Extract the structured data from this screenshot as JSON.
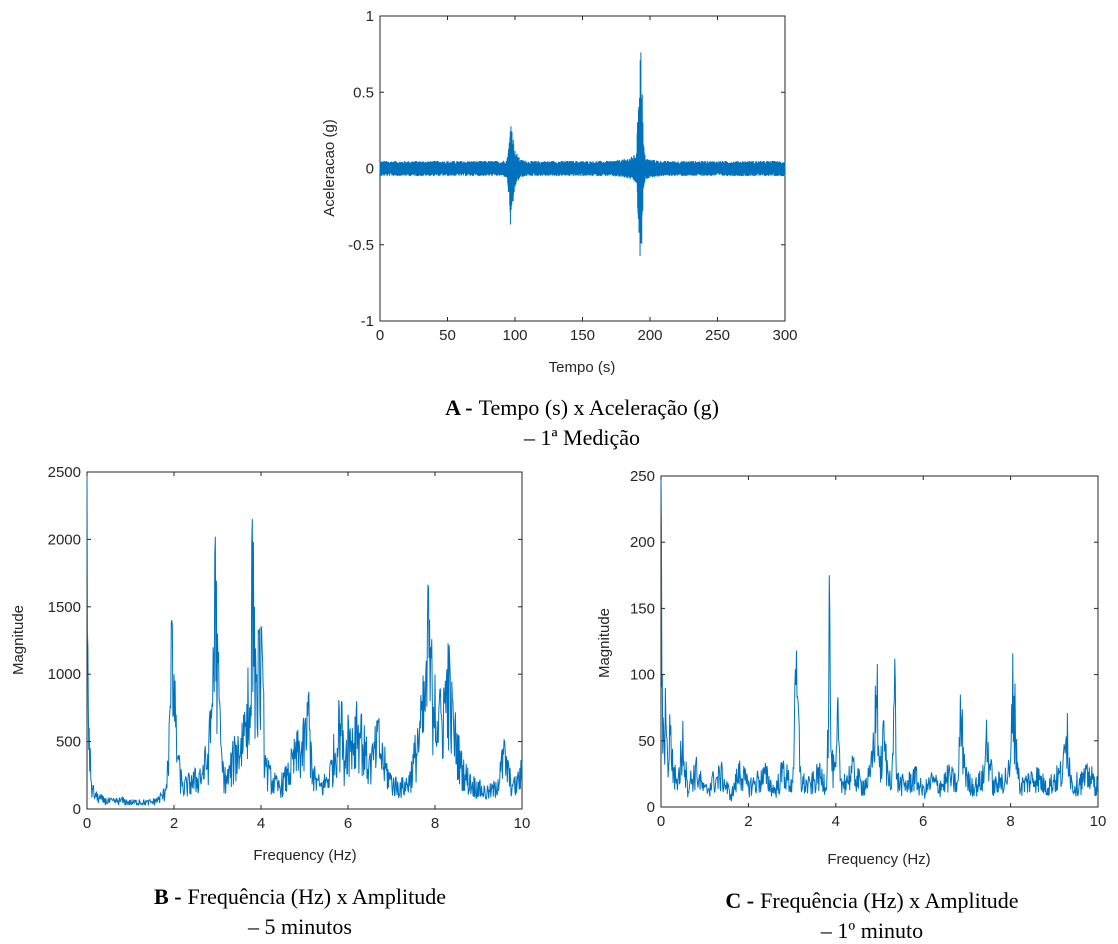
{
  "colors": {
    "series": "#0072BD",
    "axis": "#262626",
    "background": "#ffffff"
  },
  "captions": {
    "a_letter": "A -",
    "a_line1": "Tempo (s) x Aceleração (g)",
    "a_line2": "– 1ª Medição",
    "b_letter": "B -",
    "b_line1": "Frequência (Hz) x Amplitude",
    "b_line2": "– 5 minutos",
    "c_letter": "C -",
    "c_line1": "Frequência (Hz) x Amplitude",
    "c_line2": "– 1º minuto"
  },
  "chart_data": [
    {
      "id": "A",
      "type": "line",
      "xlabel": "Tempo (s)",
      "ylabel": "Aceleracao (g)",
      "xlim": [
        0,
        300
      ],
      "ylim": [
        -1,
        1
      ],
      "xticks": [
        0,
        50,
        100,
        150,
        200,
        250,
        300
      ],
      "xtick_labels": [
        "0",
        "50",
        "100",
        "150",
        "200",
        "250",
        "300"
      ],
      "yticks": [
        -1,
        -0.5,
        0,
        0.5,
        1
      ],
      "ytick_labels": [
        "-1",
        "-0.5",
        "0",
        "0.5",
        "1"
      ],
      "grid": false,
      "series": [
        {
          "x": [
            0,
            20,
            40,
            60,
            80,
            90,
            94,
            96,
            97,
            98,
            100,
            104,
            110,
            130,
            150,
            170,
            180,
            185,
            190,
            192,
            193,
            194,
            195,
            196,
            197,
            200,
            210,
            230,
            250,
            270,
            290,
            300
          ],
          "upper": [
            0.05,
            0.05,
            0.05,
            0.05,
            0.05,
            0.05,
            0.06,
            0.2,
            0.35,
            0.25,
            0.12,
            0.06,
            0.05,
            0.05,
            0.05,
            0.05,
            0.06,
            0.07,
            0.1,
            0.65,
            0.85,
            0.66,
            0.2,
            0.1,
            0.07,
            0.06,
            0.05,
            0.05,
            0.05,
            0.05,
            0.05,
            0.05
          ],
          "lower": [
            -0.05,
            -0.05,
            -0.05,
            -0.05,
            -0.05,
            -0.05,
            -0.06,
            -0.25,
            -0.47,
            -0.3,
            -0.12,
            -0.06,
            -0.05,
            -0.05,
            -0.05,
            -0.05,
            -0.06,
            -0.07,
            -0.1,
            -0.5,
            -0.69,
            -0.5,
            -0.2,
            -0.1,
            -0.07,
            -0.06,
            -0.05,
            -0.05,
            -0.05,
            -0.05,
            -0.05,
            -0.05
          ]
        }
      ]
    },
    {
      "id": "B",
      "type": "line",
      "xlabel": "Frequency (Hz)",
      "ylabel": "Magnitude",
      "xlim": [
        0,
        10
      ],
      "ylim": [
        0,
        2500
      ],
      "xticks": [
        0,
        2,
        4,
        6,
        8,
        10
      ],
      "xtick_labels": [
        "0",
        "2",
        "4",
        "6",
        "8",
        "10"
      ],
      "yticks": [
        0,
        500,
        1000,
        1500,
        2000,
        2500
      ],
      "ytick_labels": [
        "0",
        "500",
        "1000",
        "1500",
        "2000",
        "2500"
      ],
      "grid": false,
      "series": [
        {
          "x": [
            0,
            0.02,
            0.05,
            0.1,
            0.2,
            0.4,
            0.6,
            0.8,
            1.0,
            1.2,
            1.4,
            1.6,
            1.8,
            1.9,
            1.95,
            2.0,
            2.05,
            2.1,
            2.2,
            2.4,
            2.6,
            2.8,
            2.9,
            2.95,
            3.0,
            3.05,
            3.1,
            3.2,
            3.4,
            3.6,
            3.7,
            3.75,
            3.8,
            3.85,
            3.9,
            3.95,
            4.0,
            4.05,
            4.1,
            4.2,
            4.4,
            4.6,
            4.8,
            5.0,
            5.1,
            5.15,
            5.2,
            5.4,
            5.6,
            5.8,
            5.85,
            5.9,
            6.0,
            6.1,
            6.2,
            6.3,
            6.4,
            6.5,
            6.6,
            6.7,
            6.8,
            7.0,
            7.2,
            7.4,
            7.6,
            7.7,
            7.8,
            7.85,
            7.9,
            8.0,
            8.1,
            8.2,
            8.3,
            8.4,
            8.6,
            8.8,
            9.0,
            9.2,
            9.4,
            9.5,
            9.6,
            9.7,
            9.8,
            9.9,
            10.0
          ],
          "y": [
            2500,
            1200,
            600,
            200,
            120,
            80,
            70,
            80,
            60,
            70,
            60,
            80,
            150,
            700,
            1400,
            1000,
            700,
            400,
            200,
            250,
            300,
            500,
            1200,
            2020,
            1300,
            800,
            400,
            250,
            500,
            700,
            1050,
            600,
            2150,
            1500,
            1000,
            1300,
            1350,
            900,
            400,
            300,
            200,
            300,
            500,
            600,
            870,
            500,
            300,
            200,
            350,
            750,
            800,
            450,
            700,
            600,
            800,
            700,
            500,
            400,
            500,
            650,
            450,
            250,
            200,
            250,
            600,
            800,
            1100,
            1640,
            1200,
            1000,
            800,
            900,
            1230,
            800,
            400,
            250,
            200,
            150,
            200,
            350,
            500,
            300,
            200,
            250,
            350
          ]
        }
      ]
    },
    {
      "id": "C",
      "type": "line",
      "xlabel": "Frequency (Hz)",
      "ylabel": "Magnitude",
      "xlim": [
        0,
        10
      ],
      "ylim": [
        0,
        250
      ],
      "xticks": [
        0,
        2,
        4,
        6,
        8,
        10
      ],
      "xtick_labels": [
        "0",
        "2",
        "4",
        "6",
        "8",
        "10"
      ],
      "yticks": [
        0,
        50,
        100,
        150,
        200,
        250
      ],
      "ytick_labels": [
        "0",
        "50",
        "100",
        "150",
        "200",
        "250"
      ],
      "grid": false,
      "series": [
        {
          "x": [
            0,
            0.03,
            0.06,
            0.1,
            0.15,
            0.2,
            0.3,
            0.4,
            0.5,
            0.6,
            0.8,
            1.0,
            1.2,
            1.4,
            1.6,
            1.8,
            2.0,
            2.2,
            2.4,
            2.6,
            2.8,
            3.0,
            3.1,
            3.2,
            3.4,
            3.6,
            3.8,
            3.85,
            3.9,
            4.0,
            4.05,
            4.1,
            4.2,
            4.4,
            4.6,
            4.8,
            4.95,
            5.0,
            5.1,
            5.2,
            5.3,
            5.35,
            5.4,
            5.6,
            5.8,
            6.0,
            6.2,
            6.4,
            6.6,
            6.8,
            6.85,
            7.0,
            7.2,
            7.4,
            7.45,
            7.6,
            7.8,
            8.0,
            8.05,
            8.2,
            8.4,
            8.6,
            8.8,
            9.0,
            9.2,
            9.3,
            9.4,
            9.6,
            9.8,
            10.0
          ],
          "y": [
            250,
            100,
            60,
            90,
            40,
            70,
            30,
            25,
            65,
            20,
            35,
            15,
            25,
            30,
            10,
            35,
            20,
            25,
            30,
            15,
            35,
            20,
            118,
            25,
            20,
            30,
            25,
            175,
            40,
            30,
            83,
            20,
            25,
            35,
            20,
            30,
            108,
            30,
            65,
            25,
            40,
            112,
            25,
            20,
            30,
            15,
            25,
            20,
            30,
            20,
            85,
            25,
            20,
            30,
            66,
            20,
            25,
            35,
            116,
            20,
            25,
            30,
            20,
            25,
            35,
            71,
            20,
            25,
            30,
            20
          ]
        }
      ]
    }
  ]
}
